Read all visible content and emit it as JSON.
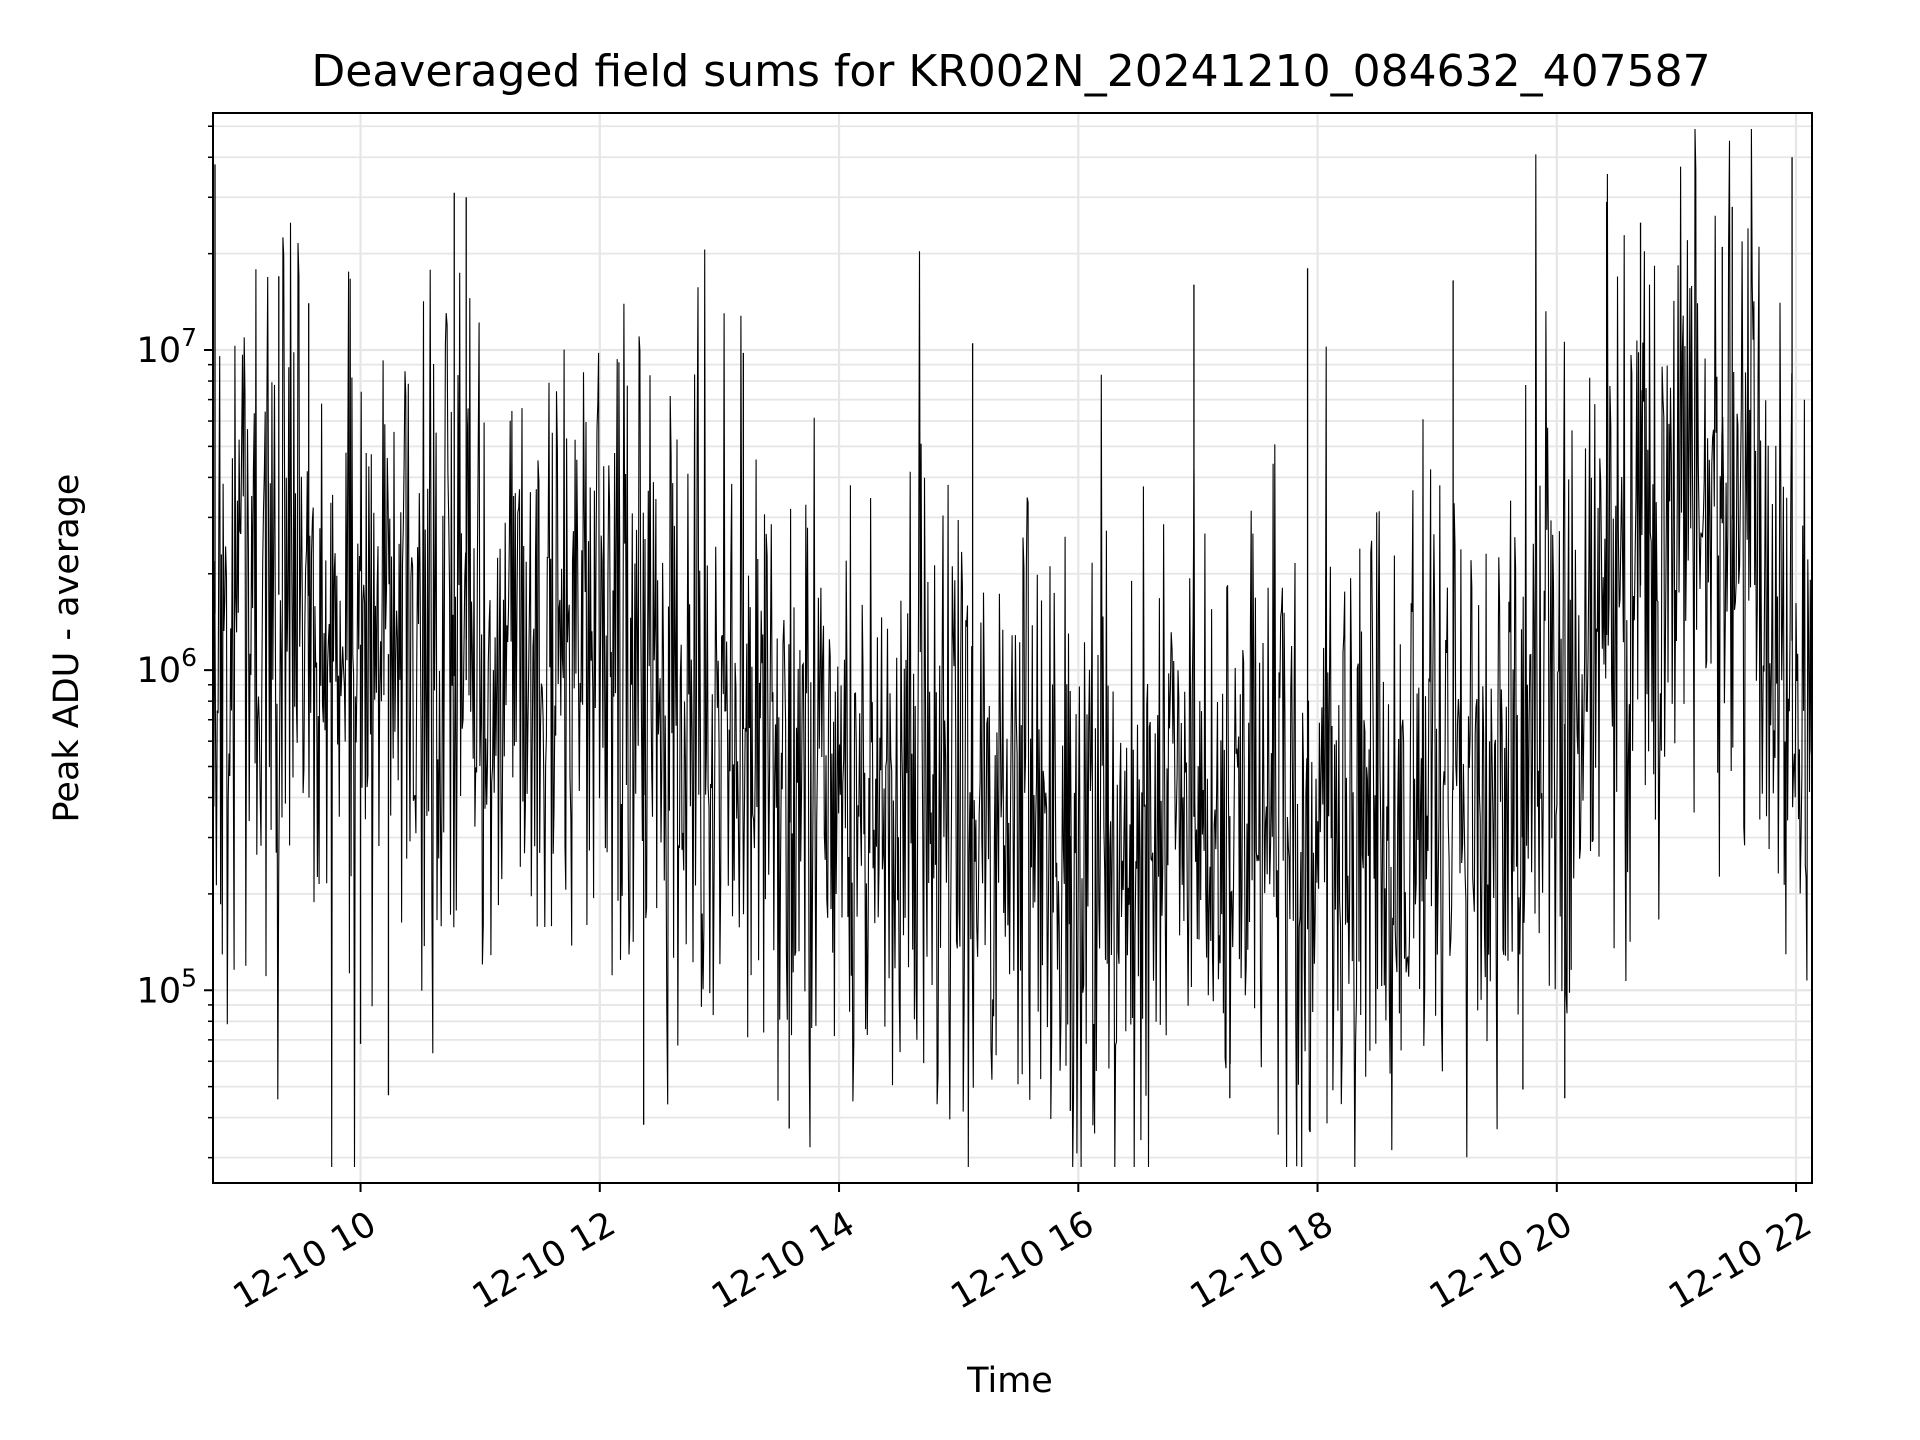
{
  "chart_data": {
    "type": "line",
    "title": "Deaveraged field sums for KR002N_20241210_084632_407587",
    "xlabel": "Time",
    "ylabel": "Peak ADU - average",
    "x_axis": {
      "kind": "time",
      "start": "2024-12-10T08:46",
      "end": "2024-12-10T22:08",
      "tick_values": [
        "2024-12-10T10:00",
        "2024-12-10T12:00",
        "2024-12-10T14:00",
        "2024-12-10T16:00",
        "2024-12-10T18:00",
        "2024-12-10T20:00",
        "2024-12-10T22:00"
      ],
      "tick_labels": [
        "12-10 10",
        "12-10 12",
        "12-10 14",
        "12-10 16",
        "12-10 18",
        "12-10 20",
        "12-10 22"
      ]
    },
    "y_axis": {
      "scale": "log",
      "ylim": [
        25000,
        55000000
      ],
      "tick_values": [
        100000,
        1000000,
        10000000
      ],
      "tick_labels": [
        {
          "base": "10",
          "exp": "5"
        },
        {
          "base": "10",
          "exp": "6"
        },
        {
          "base": "10",
          "exp": "7"
        }
      ]
    },
    "grid": true,
    "line_color": "#000000",
    "grid_color": "#e6e6e6",
    "envelope": {
      "note": "dense noisy signal; median and spread in log10 units",
      "times": [
        "2024-12-10T08:46",
        "2024-12-10T09:30",
        "2024-12-10T10:00",
        "2024-12-10T11:00",
        "2024-12-10T12:00",
        "2024-12-10T13:00",
        "2024-12-10T14:00",
        "2024-12-10T15:00",
        "2024-12-10T16:00",
        "2024-12-10T17:00",
        "2024-12-10T18:00",
        "2024-12-10T19:00",
        "2024-12-10T20:00",
        "2024-12-10T20:30",
        "2024-12-10T21:00",
        "2024-12-10T21:30",
        "2024-12-10T22:08"
      ],
      "median": [
        1500000,
        1800000,
        1200000,
        900000,
        1000000,
        700000,
        500000,
        350000,
        300000,
        350000,
        350000,
        400000,
        600000,
        1500000,
        2500000,
        3000000,
        900000
      ]
    },
    "spikes": [
      {
        "x": "2024-12-10T08:47",
        "y": 38000000
      },
      {
        "x": "2024-12-10T09:19",
        "y": 17000000
      },
      {
        "x": "2024-12-10T09:34",
        "y": 14000000
      },
      {
        "x": "2024-12-10T10:47",
        "y": 31000000
      },
      {
        "x": "2024-12-10T10:53",
        "y": 30000000
      },
      {
        "x": "2024-12-10T13:12",
        "y": 9800000
      },
      {
        "x": "2024-12-10T15:07",
        "y": 10500000
      },
      {
        "x": "2024-12-10T16:58",
        "y": 16000000
      },
      {
        "x": "2024-12-10T17:55",
        "y": 18000000
      },
      {
        "x": "2024-12-10T19:08",
        "y": 16500000
      },
      {
        "x": "2024-12-10T20:25",
        "y": 29000000
      },
      {
        "x": "2024-12-10T20:42",
        "y": 25000000
      },
      {
        "x": "2024-12-10T21:23",
        "y": 21000000
      },
      {
        "x": "2024-12-10T21:28",
        "y": 28000000
      },
      {
        "x": "2024-12-10T21:58",
        "y": 40000000
      }
    ],
    "dips": [
      {
        "x": "2024-12-10T10:00",
        "y": 68000
      },
      {
        "x": "2024-12-10T10:14",
        "y": 47000
      },
      {
        "x": "2024-12-10T12:22",
        "y": 38000
      },
      {
        "x": "2024-12-10T13:35",
        "y": 37000
      },
      {
        "x": "2024-12-10T15:56",
        "y": 42000
      },
      {
        "x": "2024-12-10T17:16",
        "y": 46000
      },
      {
        "x": "2024-12-10T19:43",
        "y": 49000
      },
      {
        "x": "2024-12-10T20:04",
        "y": 46000
      }
    ]
  }
}
